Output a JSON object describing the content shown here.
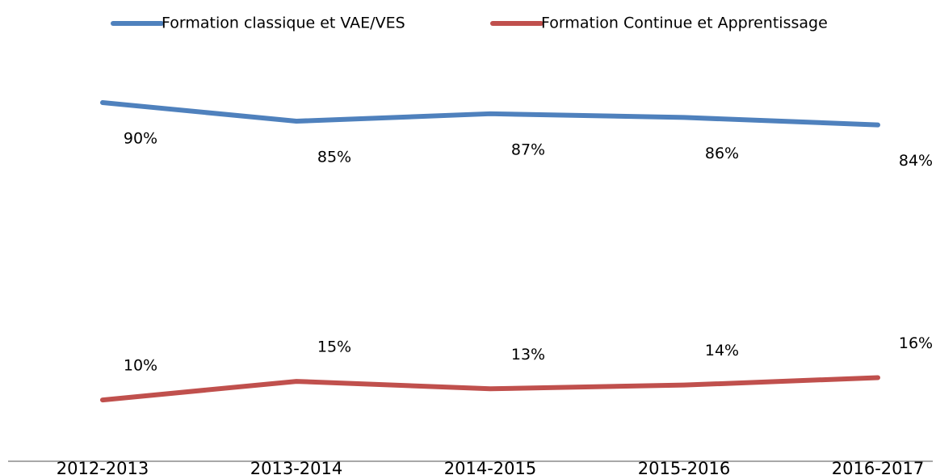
{
  "chart_data": {
    "type": "line",
    "categories": [
      "2012-2013",
      "2013-2014",
      "2014-2015",
      "2015-2016",
      "2016-2017"
    ],
    "series": [
      {
        "name": "Formation classique et VAE/VES",
        "color": "#4f81bd",
        "values": [
          90,
          85,
          87,
          86,
          84
        ],
        "value_labels": [
          "90%",
          "85%",
          "87%",
          "86%",
          "84%"
        ]
      },
      {
        "name": "Formation Continue et Apprentissage",
        "color": "#c0504d",
        "values": [
          10,
          15,
          13,
          14,
          16
        ],
        "value_labels": [
          "10%",
          "15%",
          "13%",
          "14%",
          "16%"
        ]
      }
    ],
    "ylim": [
      -6.5,
      100
    ],
    "legend": "top"
  }
}
